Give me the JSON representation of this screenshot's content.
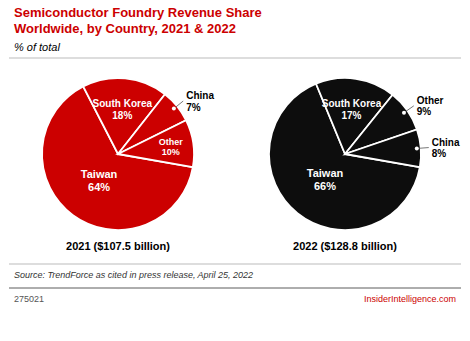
{
  "chart_data": [
    {
      "type": "pie",
      "title": "Semiconductor Foundry Revenue Share\nWorldwide, by Country, 2021 & 2022",
      "subtitle": "% of total",
      "categories": [
        "Taiwan",
        "South Korea",
        "China",
        "Other"
      ],
      "values": [
        64,
        18,
        7,
        10
      ],
      "value_labels": [
        "64%",
        "18%",
        "7%",
        "10%"
      ],
      "color": "#cc0000",
      "data_labels": true,
      "annotations": [
        "2021 ($107.5 billion)",
        "Source: TrendForce as cited in press release, April 25, 2022",
        "275021",
        "InsiderIntelligence.com"
      ]
    },
    {
      "type": "pie",
      "categories": [
        "Taiwan",
        "South Korea",
        "Other",
        "China"
      ],
      "values": [
        66,
        17,
        9,
        8
      ],
      "value_labels": [
        "66%",
        "17%",
        "9%",
        "8%"
      ],
      "color": "#0d0d0d",
      "data_labels": true,
      "annotations": [
        "2022 ($128.8 billion)"
      ]
    }
  ]
}
